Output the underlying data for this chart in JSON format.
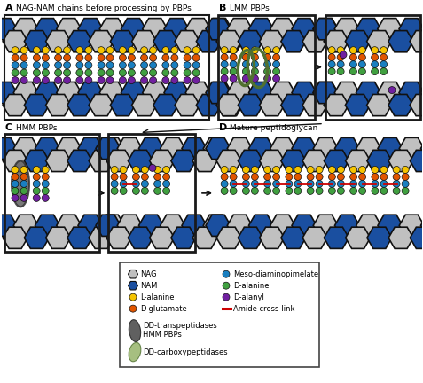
{
  "colors": {
    "NAG": "#c0c0c0",
    "NAM": "#1a4fa0",
    "L_alanine": "#f5c400",
    "D_glutamate": "#e05500",
    "meso_dap": "#1a7fc0",
    "D_alanine": "#40a040",
    "D_alanyl": "#7020a0",
    "amide_cross": "#cc0000",
    "dd_transpeptidase": "#606060",
    "dd_carboxy_fill": "#90b060",
    "dd_carboxy_edge": "#507030",
    "bg": "#ffffff",
    "border": "#1a1a1a"
  },
  "panel_titles": [
    "NAG-NAM chains before processing by PBPs",
    "LMM PBPs",
    "HMM PBPs",
    "Mature peptidoglycan"
  ],
  "legend_left": [
    "NAG",
    "NAM",
    "L-alanine",
    "D-glutamate"
  ],
  "legend_right": [
    "Meso-diaminopimelate",
    "D-alanine",
    "D-alanyl",
    "Amide cross-link"
  ],
  "legend_enz1": "DD-transpeptidases\nHMM PBPs",
  "legend_enz2": "DD-carboxypeptidases"
}
